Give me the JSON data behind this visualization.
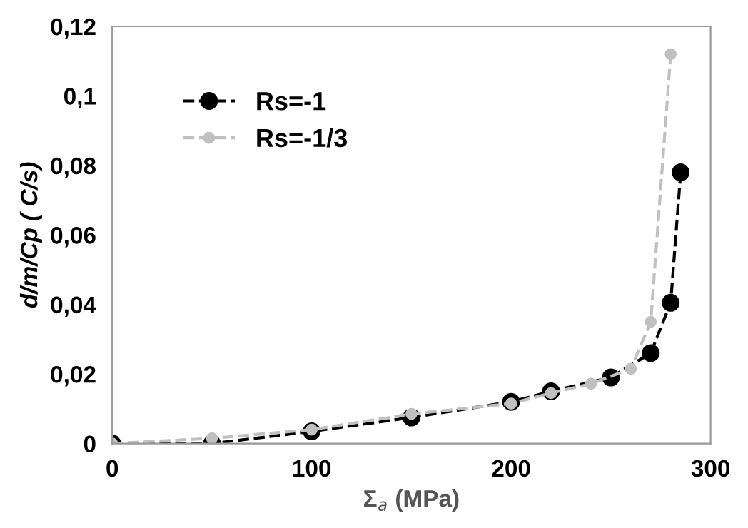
{
  "chart_data": {
    "type": "line",
    "xlabel": "Σ$_{a}$ (MPa)",
    "ylabel": "d/m/Cp ( C/s)",
    "xlim": [
      0,
      300
    ],
    "xticks": [
      0,
      100,
      200,
      300
    ],
    "ylim": [
      0,
      0.12
    ],
    "yticks": [
      {
        "value": 0,
        "label": "0"
      },
      {
        "value": 0.02,
        "label": "0,02"
      },
      {
        "value": 0.04,
        "label": "0,04"
      },
      {
        "value": 0.06,
        "label": "0,06"
      },
      {
        "value": 0.08,
        "label": "0,08"
      },
      {
        "value": 0.1,
        "label": "0,1"
      },
      {
        "value": 0.12,
        "label": "0,12"
      }
    ],
    "marker": "circle",
    "line_style": "dashed",
    "legend": "top left",
    "grid": false,
    "series": [
      {
        "name": "Rs=-1",
        "color": "#000000",
        "x": [
          0,
          50,
          100,
          150,
          200,
          220,
          250,
          270,
          280,
          285
        ],
        "values": [
          0,
          0,
          0.0035,
          0.0075,
          0.012,
          0.015,
          0.019,
          0.026,
          0.0405,
          0.078
        ]
      },
      {
        "name": "Rs=-1/3",
        "color": "#c0c0c0",
        "x": [
          0,
          50,
          100,
          150,
          200,
          220,
          240,
          260,
          270,
          280
        ],
        "values": [
          0,
          0.0015,
          0.004,
          0.0085,
          0.0115,
          0.0145,
          0.0172,
          0.0215,
          0.035,
          0.112
        ]
      }
    ]
  }
}
